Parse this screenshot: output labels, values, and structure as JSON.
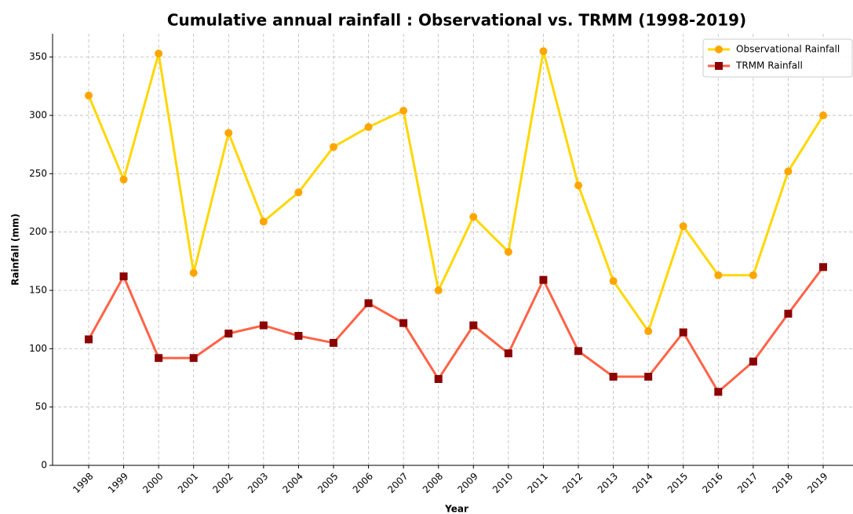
{
  "chart_data": {
    "type": "line",
    "title": "Cumulative annual rainfall : Observational vs. TRMM (1998-2019)",
    "x_label": "Year",
    "y_label": "Rainfall (mm)",
    "categories": [
      "1998",
      "1999",
      "2000",
      "2001",
      "2002",
      "2003",
      "2004",
      "2005",
      "2006",
      "2007",
      "2008",
      "2009",
      "2010",
      "2011",
      "2012",
      "2013",
      "2014",
      "2015",
      "2016",
      "2017",
      "2018",
      "2019"
    ],
    "series": [
      {
        "name": "Observational Rainfall",
        "color": "#FFD700",
        "marker_color": "#FFA500",
        "marker": "circle",
        "values": [
          317,
          245,
          353,
          165,
          285,
          209,
          234,
          273,
          290,
          304,
          150,
          213,
          183,
          355,
          240,
          158,
          115,
          205,
          163,
          163,
          252,
          300
        ]
      },
      {
        "name": "TRMM Rainfall",
        "color": "#FF6347",
        "marker_color": "#8B0000",
        "marker": "square",
        "values": [
          108,
          162,
          92,
          92,
          113,
          120,
          111,
          105,
          139,
          122,
          74,
          120,
          96,
          159,
          98,
          76,
          76,
          114,
          63,
          89,
          130,
          170
        ]
      }
    ],
    "ylim": [
      0,
      370
    ],
    "yticks": [
      0,
      50,
      100,
      150,
      200,
      250,
      300,
      350
    ],
    "grid": true,
    "legend": "upper right"
  }
}
